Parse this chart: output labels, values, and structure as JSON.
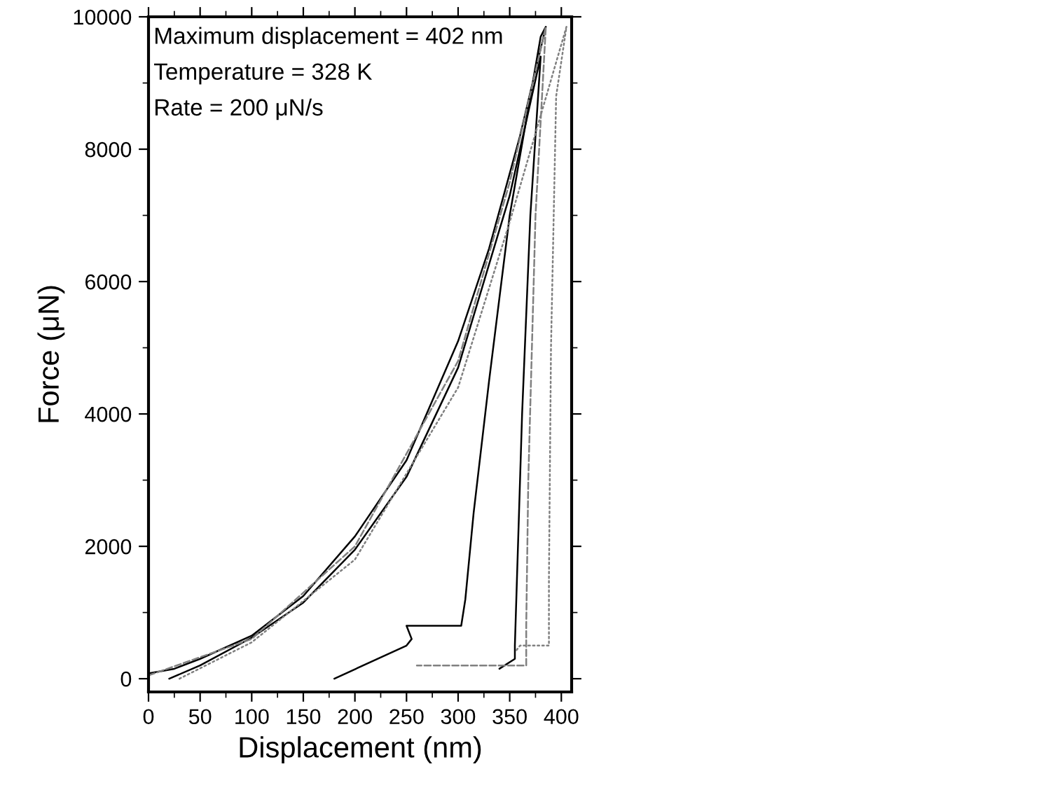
{
  "chart_data": {
    "type": "line",
    "xlabel": "Displacement (nm)",
    "ylabel": "Force (μN)",
    "annotations": [
      "Maximum displacement = 402 nm",
      "Temperature = 328 K",
      "Rate = 200 μN/s"
    ],
    "xlim": [
      0,
      410
    ],
    "ylim": [
      -200,
      10000
    ],
    "xticks": [
      0,
      50,
      100,
      150,
      200,
      250,
      300,
      350,
      400
    ],
    "yticks": [
      0,
      2000,
      4000,
      6000,
      8000,
      10000
    ],
    "grid": false,
    "legend": false,
    "marker": "none",
    "series": [
      {
        "color": "#000000",
        "line_style": "solid",
        "x": [
          0,
          25,
          50,
          100,
          150,
          200,
          250,
          300,
          330,
          360,
          385,
          380,
          350,
          330,
          315,
          307,
          303,
          250,
          255,
          250,
          180
        ],
        "values": [
          80,
          150,
          300,
          650,
          1250,
          2150,
          3300,
          5100,
          6500,
          8200,
          9850,
          9700,
          7000,
          4500,
          2500,
          1200,
          800,
          800,
          600,
          500,
          0
        ]
      },
      {
        "color": "#000000",
        "line_style": "solid",
        "x": [
          20,
          50,
          100,
          150,
          200,
          250,
          300,
          350,
          380,
          370,
          362,
          357,
          355,
          355,
          340
        ],
        "values": [
          0,
          200,
          620,
          1150,
          1950,
          3050,
          4700,
          7300,
          9400,
          7000,
          4000,
          1500,
          500,
          300,
          150
        ]
      },
      {
        "color": "#808080",
        "line_style": "dashed",
        "x": [
          0,
          100,
          200,
          300,
          350,
          385,
          375,
          368,
          366,
          366,
          260
        ],
        "values": [
          50,
          600,
          2000,
          4800,
          7500,
          9850,
          7000,
          3000,
          800,
          200,
          200
        ]
      },
      {
        "color": "#808080",
        "line_style": "dotted",
        "x": [
          30,
          100,
          200,
          300,
          350,
          405,
          395,
          390,
          388,
          388,
          360,
          355
        ],
        "values": [
          0,
          550,
          1800,
          4400,
          6900,
          9850,
          8800,
          5000,
          1500,
          500,
          500,
          400
        ]
      }
    ]
  }
}
